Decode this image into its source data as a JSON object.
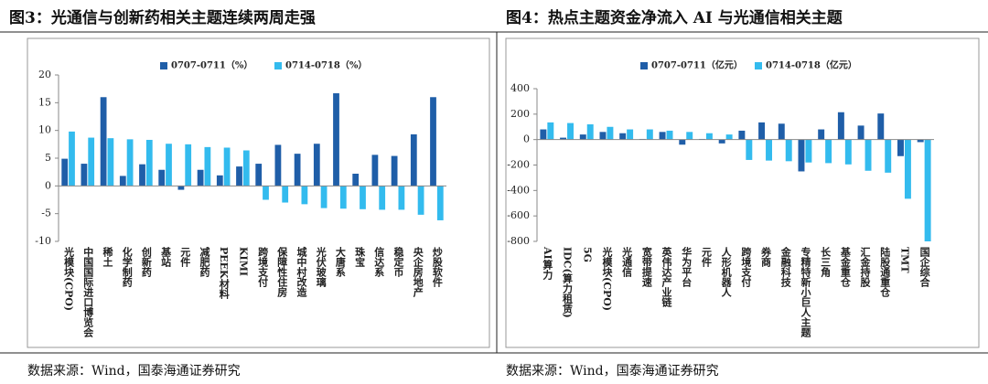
{
  "chart_data": [
    {
      "type": "bar",
      "title": "图3：光通信与创新药相关主题连续两周走强",
      "categories": [
        "光模块(CPO)",
        "中国国际进口博览会",
        "稀土",
        "化学制药",
        "创新药",
        "基站",
        "元件",
        "减肥药",
        "PEEK材料",
        "KIMI",
        "跨境支付",
        "保障性住房",
        "城中村改造",
        "光伏玻璃",
        "大唐系",
        "珠宝",
        "信达系",
        "稳定币",
        "央企房地产",
        "炒股软件"
      ],
      "series": [
        {
          "name": "0707-0711（%）",
          "color": "#1f5ea8",
          "values": [
            4.9,
            4.0,
            16.0,
            1.8,
            3.9,
            2.9,
            -0.7,
            2.9,
            1.9,
            3.5,
            4.0,
            7.4,
            5.8,
            7.6,
            16.7,
            2.2,
            5.6,
            5.4,
            9.3,
            16.0
          ]
        },
        {
          "name": "0714-0718（%）",
          "color": "#33bbee",
          "values": [
            9.8,
            8.7,
            8.6,
            8.4,
            8.3,
            7.6,
            7.5,
            7.0,
            6.9,
            6.4,
            -2.5,
            -3.0,
            -3.3,
            -4.0,
            -4.1,
            -4.2,
            -4.3,
            -4.3,
            -5.2,
            -6.2
          ]
        }
      ],
      "ylim": [
        -10,
        20
      ],
      "yticks": [
        -10,
        -5,
        0,
        5,
        10,
        15,
        20
      ],
      "source": "数据来源：Wind，国泰海通证券研究"
    },
    {
      "type": "bar",
      "title": "图4：热点主题资金净流入 AI 与光通信相关主题",
      "categories": [
        "AI算力",
        "IDC(算力租赁)",
        "5G",
        "光模块(CPO)",
        "光通信",
        "宽带提速",
        "英伟达产业链",
        "华为平台",
        "元件",
        "人形机器人",
        "跨境支付",
        "券商",
        "金融科技",
        "专精特新小巨人主题",
        "长三角",
        "基金重仓",
        "汇金持股",
        "陆股通重仓",
        "TMT",
        "国企综合"
      ],
      "series": [
        {
          "name": "0707-0711（亿元）",
          "color": "#1f5ea8",
          "values": [
            80,
            15,
            40,
            60,
            50,
            5,
            60,
            -40,
            5,
            -30,
            70,
            135,
            125,
            -250,
            80,
            215,
            110,
            205,
            -130,
            -20
          ]
        },
        {
          "name": "0714-0718（亿元）",
          "color": "#33bbee",
          "values": [
            135,
            130,
            120,
            100,
            80,
            80,
            70,
            60,
            50,
            40,
            -160,
            -165,
            -170,
            -180,
            -185,
            -195,
            -245,
            -260,
            -465,
            -800
          ]
        }
      ],
      "ylim": [
        -800,
        400
      ],
      "yticks": [
        -800,
        -600,
        -400,
        -200,
        0,
        200,
        400
      ],
      "source": "数据来源：Wind，国泰海通证券研究"
    }
  ]
}
